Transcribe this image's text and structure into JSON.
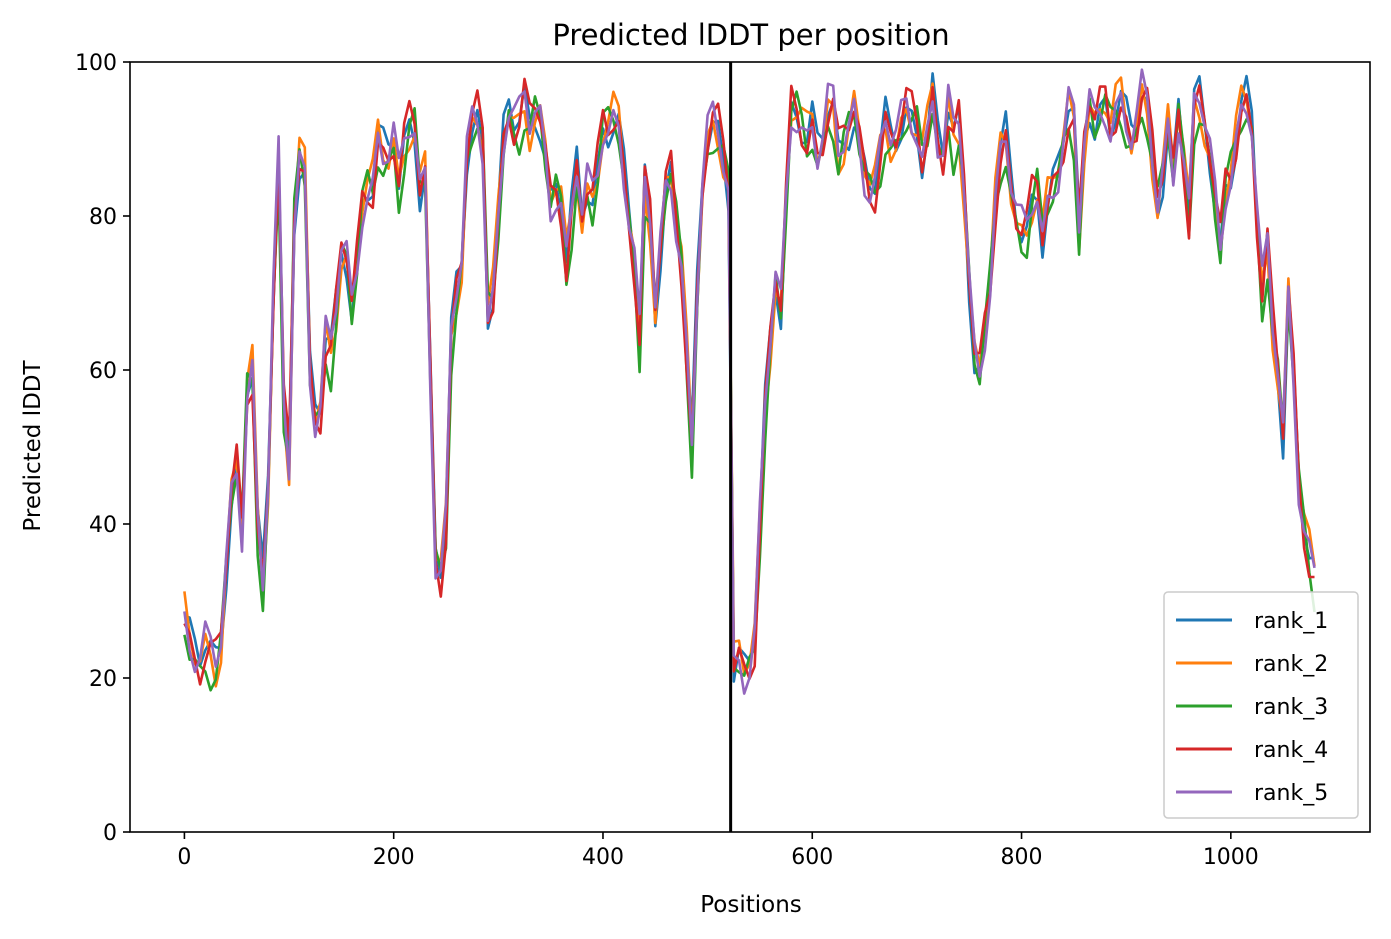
{
  "chart_data": {
    "type": "line",
    "title": "Predicted lDDT per position",
    "xlabel": "Positions",
    "ylabel": "Predicted lDDT",
    "xlim": [
      -52,
      1133
    ],
    "ylim": [
      0,
      100
    ],
    "xticks": [
      0,
      200,
      400,
      600,
      800,
      1000
    ],
    "yticks": [
      0,
      20,
      40,
      60,
      80,
      100
    ],
    "grid": false,
    "legend_position": "lower-right",
    "divider_x": 522,
    "x": [
      0,
      5,
      10,
      15,
      20,
      25,
      30,
      35,
      40,
      45,
      50,
      55,
      60,
      65,
      70,
      75,
      80,
      85,
      90,
      95,
      100,
      105,
      110,
      115,
      120,
      125,
      130,
      135,
      140,
      145,
      150,
      155,
      160,
      165,
      170,
      175,
      180,
      185,
      190,
      195,
      200,
      205,
      210,
      215,
      220,
      225,
      230,
      235,
      240,
      245,
      250,
      255,
      260,
      265,
      270,
      275,
      280,
      285,
      290,
      295,
      300,
      305,
      310,
      315,
      320,
      325,
      330,
      335,
      340,
      345,
      350,
      355,
      360,
      365,
      370,
      375,
      380,
      385,
      390,
      395,
      400,
      405,
      410,
      415,
      420,
      425,
      430,
      435,
      440,
      445,
      450,
      455,
      460,
      465,
      470,
      475,
      480,
      485,
      490,
      495,
      500,
      505,
      510,
      515,
      520,
      525,
      530,
      535,
      540,
      545,
      550,
      555,
      560,
      565,
      570,
      575,
      580,
      585,
      590,
      595,
      600,
      605,
      610,
      615,
      620,
      625,
      630,
      635,
      640,
      645,
      650,
      655,
      660,
      665,
      670,
      675,
      680,
      685,
      690,
      695,
      700,
      705,
      710,
      715,
      720,
      725,
      730,
      735,
      740,
      745,
      750,
      755,
      760,
      765,
      770,
      775,
      780,
      785,
      790,
      795,
      800,
      805,
      810,
      815,
      820,
      825,
      830,
      835,
      840,
      845,
      850,
      855,
      860,
      865,
      870,
      875,
      880,
      885,
      890,
      895,
      900,
      905,
      910,
      915,
      920,
      925,
      930,
      935,
      940,
      945,
      950,
      955,
      960,
      965,
      970,
      975,
      980,
      985,
      990,
      995,
      1000,
      1005,
      1010,
      1015,
      1020,
      1025,
      1030,
      1035,
      1040,
      1045,
      1050,
      1055,
      1060,
      1065,
      1070,
      1075,
      1080
    ],
    "base": [
      28,
      25,
      23,
      22,
      24,
      23,
      22,
      25,
      35,
      44,
      48,
      40,
      58,
      60,
      40,
      32,
      45,
      70,
      87,
      55,
      48,
      80,
      88,
      86,
      60,
      54,
      55,
      64,
      62,
      68,
      76,
      75,
      68,
      74,
      82,
      84,
      84,
      90,
      88,
      88,
      90,
      84,
      89,
      92,
      92,
      84,
      86,
      60,
      36,
      34,
      40,
      64,
      70,
      74,
      88,
      92,
      93,
      90,
      68,
      70,
      80,
      90,
      94,
      92,
      92,
      95,
      92,
      94,
      93,
      88,
      82,
      84,
      82,
      74,
      80,
      86,
      80,
      84,
      82,
      86,
      92,
      92,
      93,
      92,
      86,
      80,
      74,
      64,
      84,
      80,
      68,
      76,
      84,
      86,
      80,
      74,
      62,
      50,
      70,
      84,
      90,
      92,
      91,
      88,
      84,
      22,
      23,
      21,
      22,
      25,
      40,
      55,
      64,
      72,
      68,
      82,
      94,
      94,
      92,
      90,
      92,
      88,
      90,
      94,
      94,
      88,
      90,
      92,
      94,
      90,
      86,
      84,
      84,
      88,
      92,
      90,
      90,
      92,
      94,
      93,
      92,
      88,
      91,
      96,
      90,
      88,
      94,
      90,
      92,
      84,
      72,
      62,
      60,
      66,
      72,
      82,
      88,
      90,
      84,
      80,
      78,
      78,
      82,
      84,
      78,
      82,
      84,
      86,
      90,
      94,
      92,
      78,
      90,
      95,
      92,
      94,
      95,
      92,
      94,
      95,
      92,
      90,
      92,
      96,
      94,
      88,
      82,
      86,
      92,
      86,
      94,
      88,
      80,
      94,
      95,
      92,
      88,
      82,
      76,
      84,
      86,
      90,
      94,
      95,
      92,
      80,
      70,
      76,
      66,
      60,
      52,
      70,
      60,
      46,
      40,
      36,
      33
    ],
    "series": [
      {
        "name": "rank_1",
        "color": "#1f77b4"
      },
      {
        "name": "rank_2",
        "color": "#ff7f0e"
      },
      {
        "name": "rank_3",
        "color": "#2ca02c"
      },
      {
        "name": "rank_4",
        "color": "#d62728"
      },
      {
        "name": "rank_5",
        "color": "#9467bd"
      }
    ]
  }
}
